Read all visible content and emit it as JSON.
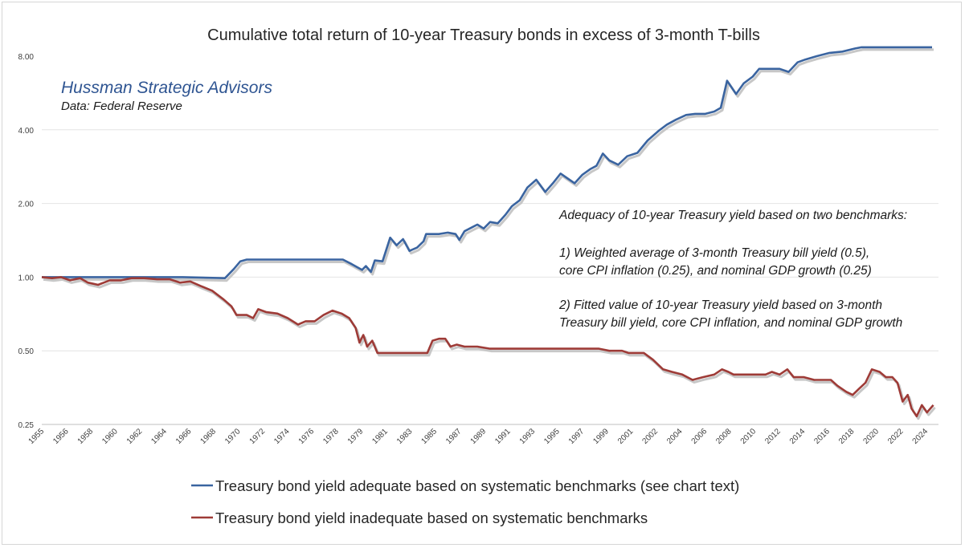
{
  "chart_data": {
    "type": "line",
    "title": "Cumulative total return of 10-year Treasury bonds in excess of 3-month T-bills",
    "brand": "Hussman Strategic Advisors",
    "source": "Data: Federal Reserve",
    "y_scale": "log",
    "ylim": [
      0.25,
      8.0
    ],
    "y_ticks": [
      "8.00",
      "4.00",
      "2.00",
      "1.00",
      "0.50",
      "0.25"
    ],
    "y_tick_values": [
      8,
      4,
      2,
      1,
      0.5,
      0.25
    ],
    "xlim": [
      1955,
      2025
    ],
    "x_ticks": [
      "1955",
      "1956",
      "1958",
      "1960",
      "1962",
      "1964",
      "1966",
      "1968",
      "1970",
      "1972",
      "1974",
      "1976",
      "1978",
      "1979",
      "1981",
      "1983",
      "1985",
      "1987",
      "1989",
      "1991",
      "1993",
      "1995",
      "1997",
      "1999",
      "2001",
      "2002",
      "2004",
      "2006",
      "2008",
      "2010",
      "2012",
      "2014",
      "2016",
      "2018",
      "2020",
      "2022",
      "2024"
    ],
    "grid": "horizontal",
    "annotations": {
      "heading": "Adequacy of 10-year Treasury yield based on two benchmarks:",
      "item1_line1": "1) Weighted average of 3-month Treasury bill yield (0.5),",
      "item1_line2": "core CPI inflation (0.25), and nominal GDP growth (0.25)",
      "item2_line1": "2) Fitted value of 10-year Treasury yield based on 3-month",
      "item2_line2": "Treasury bill yield, core CPI inflation, and nominal GDP growth"
    },
    "legend_placement": "bottom",
    "series": [
      {
        "name": "Treasury bond yield adequate based on systematic benchmarks (see chart text)",
        "color": "#3a64a0",
        "points": [
          [
            1955,
            1.0
          ],
          [
            1960,
            1.0
          ],
          [
            1962,
            1.0
          ],
          [
            1966,
            1.0
          ],
          [
            1969.3,
            0.99
          ],
          [
            1970,
            1.08
          ],
          [
            1970.5,
            1.16
          ],
          [
            1971,
            1.18
          ],
          [
            1978.5,
            1.18
          ],
          [
            1979.2,
            1.13
          ],
          [
            1980,
            1.07
          ],
          [
            1980.3,
            1.11
          ],
          [
            1980.7,
            1.05
          ],
          [
            1981,
            1.17
          ],
          [
            1981.6,
            1.16
          ],
          [
            1982.2,
            1.45
          ],
          [
            1982.7,
            1.35
          ],
          [
            1983.2,
            1.43
          ],
          [
            1983.7,
            1.28
          ],
          [
            1984.3,
            1.32
          ],
          [
            1984.8,
            1.4
          ],
          [
            1985,
            1.5
          ],
          [
            1986,
            1.5
          ],
          [
            1986.7,
            1.52
          ],
          [
            1987.3,
            1.5
          ],
          [
            1987.6,
            1.42
          ],
          [
            1988,
            1.54
          ],
          [
            1988.6,
            1.6
          ],
          [
            1989,
            1.64
          ],
          [
            1989.5,
            1.58
          ],
          [
            1990,
            1.68
          ],
          [
            1990.6,
            1.66
          ],
          [
            1991.2,
            1.8
          ],
          [
            1991.7,
            1.95
          ],
          [
            1992.3,
            2.06
          ],
          [
            1992.9,
            2.32
          ],
          [
            1993.6,
            2.5
          ],
          [
            1994.3,
            2.23
          ],
          [
            1994.9,
            2.42
          ],
          [
            1995.5,
            2.65
          ],
          [
            1996.1,
            2.52
          ],
          [
            1996.6,
            2.42
          ],
          [
            1997.2,
            2.62
          ],
          [
            1997.8,
            2.76
          ],
          [
            1998.3,
            2.85
          ],
          [
            1998.8,
            3.2
          ],
          [
            1999.3,
            3.0
          ],
          [
            2000,
            2.88
          ],
          [
            2000.7,
            3.12
          ],
          [
            2001.5,
            3.22
          ],
          [
            2002.3,
            3.62
          ],
          [
            2003.2,
            3.98
          ],
          [
            2003.8,
            4.2
          ],
          [
            2004.5,
            4.4
          ],
          [
            2005.3,
            4.6
          ],
          [
            2006,
            4.65
          ],
          [
            2006.8,
            4.65
          ],
          [
            2007.5,
            4.75
          ],
          [
            2008,
            4.92
          ],
          [
            2008.5,
            6.35
          ],
          [
            2009.2,
            5.6
          ],
          [
            2009.8,
            6.2
          ],
          [
            2010.5,
            6.6
          ],
          [
            2011,
            7.1
          ],
          [
            2012.6,
            7.1
          ],
          [
            2013.3,
            6.9
          ],
          [
            2014,
            7.55
          ],
          [
            2014.6,
            7.75
          ],
          [
            2015.5,
            8.0
          ],
          [
            2016.5,
            8.25
          ],
          [
            2017.5,
            8.35
          ],
          [
            2018.5,
            8.6
          ],
          [
            2019,
            8.7
          ],
          [
            2024.5,
            8.7
          ]
        ]
      },
      {
        "name": "Treasury bond yield inadequate based on systematic benchmarks",
        "color": "#9e3b37",
        "points": [
          [
            1955,
            1.0
          ],
          [
            1955.8,
            0.99
          ],
          [
            1956.5,
            1.0
          ],
          [
            1957.2,
            0.97
          ],
          [
            1958,
            0.99
          ],
          [
            1958.6,
            0.95
          ],
          [
            1959.4,
            0.93
          ],
          [
            1960.3,
            0.97
          ],
          [
            1961.2,
            0.97
          ],
          [
            1962,
            0.99
          ],
          [
            1963,
            0.99
          ],
          [
            1964,
            0.98
          ],
          [
            1965,
            0.98
          ],
          [
            1965.8,
            0.95
          ],
          [
            1966.6,
            0.96
          ],
          [
            1967.4,
            0.92
          ],
          [
            1968.3,
            0.88
          ],
          [
            1969.2,
            0.81
          ],
          [
            1969.8,
            0.76
          ],
          [
            1970.2,
            0.7
          ],
          [
            1971,
            0.7
          ],
          [
            1971.5,
            0.68
          ],
          [
            1971.9,
            0.74
          ],
          [
            1972.5,
            0.72
          ],
          [
            1973.4,
            0.71
          ],
          [
            1974.2,
            0.68
          ],
          [
            1975,
            0.64
          ],
          [
            1975.6,
            0.66
          ],
          [
            1976.3,
            0.66
          ],
          [
            1977,
            0.7
          ],
          [
            1977.7,
            0.73
          ],
          [
            1978.4,
            0.71
          ],
          [
            1979,
            0.68
          ],
          [
            1979.5,
            0.62
          ],
          [
            1979.8,
            0.54
          ],
          [
            1980.1,
            0.58
          ],
          [
            1980.4,
            0.52
          ],
          [
            1980.8,
            0.55
          ],
          [
            1981.2,
            0.49
          ],
          [
            1985.1,
            0.49
          ],
          [
            1985.5,
            0.55
          ],
          [
            1986,
            0.56
          ],
          [
            1986.5,
            0.56
          ],
          [
            1986.9,
            0.52
          ],
          [
            1987.4,
            0.53
          ],
          [
            1988,
            0.52
          ],
          [
            1989,
            0.52
          ],
          [
            1990,
            0.51
          ],
          [
            1996,
            0.51
          ],
          [
            1998.5,
            0.51
          ],
          [
            1999.3,
            0.5
          ],
          [
            2000.3,
            0.5
          ],
          [
            2000.8,
            0.49
          ],
          [
            2002,
            0.49
          ],
          [
            2002.7,
            0.46
          ],
          [
            2003.5,
            0.42
          ],
          [
            2004.2,
            0.41
          ],
          [
            2005,
            0.4
          ],
          [
            2005.8,
            0.38
          ],
          [
            2006.6,
            0.39
          ],
          [
            2007.5,
            0.4
          ],
          [
            2008.1,
            0.42
          ],
          [
            2008.6,
            0.41
          ],
          [
            2009,
            0.4
          ],
          [
            2011.5,
            0.4
          ],
          [
            2012,
            0.41
          ],
          [
            2012.6,
            0.4
          ],
          [
            2013.2,
            0.42
          ],
          [
            2013.7,
            0.39
          ],
          [
            2014.5,
            0.39
          ],
          [
            2015.3,
            0.38
          ],
          [
            2016.6,
            0.38
          ],
          [
            2017.1,
            0.36
          ],
          [
            2017.8,
            0.34
          ],
          [
            2018.3,
            0.33
          ],
          [
            2018.8,
            0.35
          ],
          [
            2019.3,
            0.37
          ],
          [
            2019.8,
            0.42
          ],
          [
            2020.4,
            0.41
          ],
          [
            2020.9,
            0.39
          ],
          [
            2021.4,
            0.39
          ],
          [
            2021.8,
            0.37
          ],
          [
            2022.2,
            0.31
          ],
          [
            2022.6,
            0.33
          ],
          [
            2022.9,
            0.29
          ],
          [
            2023.3,
            0.27
          ],
          [
            2023.7,
            0.3
          ],
          [
            2024.1,
            0.28
          ],
          [
            2024.6,
            0.3
          ]
        ]
      }
    ]
  }
}
